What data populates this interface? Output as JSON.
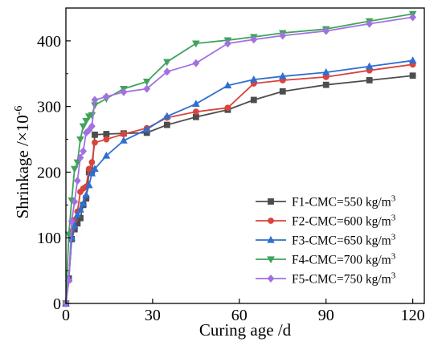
{
  "chart_data": {
    "type": "line",
    "xlabel": "Curing age /d",
    "ylabel_main": "Shrinkage /×10",
    "ylabel_exp": "-6",
    "xlim": [
      0,
      124
    ],
    "ylim": [
      0,
      450
    ],
    "xticks": [
      0,
      30,
      60,
      90,
      120
    ],
    "yticks": [
      0,
      100,
      200,
      300,
      400
    ],
    "legend_position": "lower-right",
    "series": [
      {
        "name": "F1-CMC=550 kg/m",
        "sup": "3",
        "color": "#4d4d4d",
        "marker": "square",
        "x": [
          0,
          1,
          2,
          3,
          4,
          5,
          6,
          7,
          8,
          9,
          10,
          14,
          20,
          28,
          35,
          45,
          56,
          65,
          75,
          90,
          105,
          120
        ],
        "y": [
          0,
          38,
          98,
          113,
          122,
          130,
          150,
          160,
          200,
          202,
          257,
          258,
          259,
          260,
          272,
          284,
          295,
          310,
          323,
          333,
          340,
          347
        ]
      },
      {
        "name": "F2-CMC=600 kg/m",
        "sup": "3",
        "color": "#d9443c",
        "marker": "circle",
        "x": [
          0,
          1,
          2,
          3,
          4,
          5,
          6,
          7,
          8,
          9,
          10,
          14,
          20,
          28,
          35,
          45,
          56,
          65,
          75,
          90,
          105,
          120
        ],
        "y": [
          0,
          35,
          110,
          127,
          140,
          170,
          175,
          178,
          205,
          215,
          245,
          250,
          258,
          267,
          283,
          292,
          298,
          335,
          340,
          345,
          355,
          364
        ]
      },
      {
        "name": "F3-CMC=650 kg/m",
        "sup": "3",
        "color": "#2e6fd1",
        "marker": "triangle-up",
        "x": [
          0,
          1,
          2,
          3,
          4,
          5,
          6,
          7,
          8,
          9,
          10,
          14,
          20,
          28,
          35,
          45,
          56,
          65,
          75,
          90,
          105,
          120
        ],
        "y": [
          0,
          38,
          100,
          118,
          135,
          143,
          152,
          165,
          180,
          198,
          205,
          225,
          248,
          265,
          285,
          304,
          332,
          341,
          346,
          352,
          361,
          370
        ]
      },
      {
        "name": "F4-CMC=700 kg/m",
        "sup": "3",
        "color": "#3fa35a",
        "marker": "triangle-down",
        "x": [
          0,
          1,
          2,
          3,
          4,
          5,
          6,
          7,
          8,
          9,
          10,
          14,
          20,
          28,
          35,
          45,
          56,
          65,
          75,
          90,
          105,
          120
        ],
        "y": [
          0,
          105,
          157,
          205,
          215,
          250,
          270,
          278,
          285,
          287,
          302,
          312,
          327,
          338,
          368,
          396,
          401,
          406,
          412,
          418,
          430,
          441
        ]
      },
      {
        "name": "F5-CMC=750 kg/m",
        "sup": "3",
        "color": "#a271e0",
        "marker": "diamond",
        "x": [
          0,
          1,
          2,
          3,
          4,
          5,
          6,
          7,
          8,
          9,
          10,
          14,
          20,
          28,
          35,
          45,
          56,
          65,
          75,
          90,
          105,
          120
        ],
        "y": [
          0,
          35,
          125,
          155,
          187,
          222,
          232,
          260,
          264,
          270,
          310,
          315,
          322,
          327,
          353,
          366,
          396,
          402,
          408,
          415,
          426,
          436
        ]
      }
    ]
  }
}
